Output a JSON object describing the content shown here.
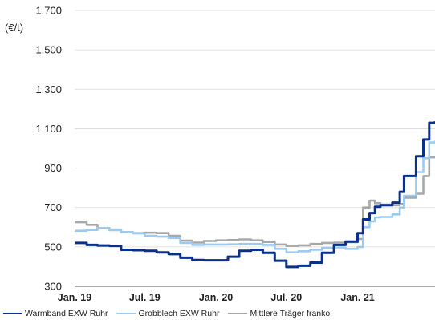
{
  "chart_data": {
    "type": "line",
    "ylabel": "(€/t)",
    "ylim": [
      300,
      1700
    ],
    "yticks": [
      300,
      500,
      700,
      900,
      1100,
      1300,
      1500,
      1700
    ],
    "ytick_labels": [
      "300",
      "500",
      "700",
      "900",
      "1.100",
      "1.300",
      "1.500",
      "1.700"
    ],
    "xlim": [
      "2019-01-01",
      "2021-07-20"
    ],
    "xticks": [
      "2019-01-01",
      "2019-07-01",
      "2020-01-01",
      "2020-07-01",
      "2021-01-01"
    ],
    "xtick_labels": [
      "Jan. 19",
      "Jul. 19",
      "Jan. 20",
      "Jul. 20",
      "Jan. 21"
    ],
    "grid": "horizontal",
    "legend_position": "bottom",
    "series": [
      {
        "name": "Warmband EXW Ruhr",
        "color": "#0a2f8c",
        "points": [
          [
            "2019-01-01",
            520
          ],
          [
            "2019-02-01",
            510
          ],
          [
            "2019-03-01",
            507
          ],
          [
            "2019-04-01",
            505
          ],
          [
            "2019-05-01",
            485
          ],
          [
            "2019-06-01",
            483
          ],
          [
            "2019-07-01",
            480
          ],
          [
            "2019-08-01",
            472
          ],
          [
            "2019-09-01",
            463
          ],
          [
            "2019-10-01",
            445
          ],
          [
            "2019-11-01",
            433
          ],
          [
            "2019-12-01",
            432
          ],
          [
            "2020-01-01",
            432
          ],
          [
            "2020-02-01",
            450
          ],
          [
            "2020-03-01",
            480
          ],
          [
            "2020-04-01",
            485
          ],
          [
            "2020-05-01",
            470
          ],
          [
            "2020-06-01",
            430
          ],
          [
            "2020-07-01",
            398
          ],
          [
            "2020-08-01",
            404
          ],
          [
            "2020-09-01",
            420
          ],
          [
            "2020-10-01",
            470
          ],
          [
            "2020-11-01",
            510
          ],
          [
            "2020-12-01",
            527
          ],
          [
            "2021-01-01",
            570
          ],
          [
            "2021-01-15",
            640
          ],
          [
            "2021-02-01",
            672
          ],
          [
            "2021-02-15",
            704
          ],
          [
            "2021-03-01",
            712
          ],
          [
            "2021-04-01",
            725
          ],
          [
            "2021-04-20",
            780
          ],
          [
            "2021-05-01",
            860
          ],
          [
            "2021-06-01",
            960
          ],
          [
            "2021-06-20",
            1045
          ],
          [
            "2021-07-05",
            1130
          ],
          [
            "2021-07-20",
            1138
          ]
        ]
      },
      {
        "name": "Grobblech EXW Ruhr",
        "color": "#9ccbf2",
        "points": [
          [
            "2019-01-01",
            582
          ],
          [
            "2019-02-01",
            586
          ],
          [
            "2019-03-01",
            596
          ],
          [
            "2019-04-01",
            585
          ],
          [
            "2019-05-01",
            575
          ],
          [
            "2019-06-01",
            568
          ],
          [
            "2019-07-01",
            556
          ],
          [
            "2019-08-01",
            552
          ],
          [
            "2019-09-01",
            545
          ],
          [
            "2019-10-01",
            520
          ],
          [
            "2019-11-01",
            510
          ],
          [
            "2019-12-01",
            512
          ],
          [
            "2020-01-01",
            512
          ],
          [
            "2020-02-01",
            513
          ],
          [
            "2020-03-01",
            515
          ],
          [
            "2020-04-01",
            515
          ],
          [
            "2020-05-01",
            510
          ],
          [
            "2020-06-01",
            490
          ],
          [
            "2020-07-01",
            472
          ],
          [
            "2020-08-01",
            478
          ],
          [
            "2020-09-01",
            485
          ],
          [
            "2020-10-01",
            495
          ],
          [
            "2020-11-01",
            497
          ],
          [
            "2020-12-01",
            490
          ],
          [
            "2021-01-01",
            500
          ],
          [
            "2021-01-15",
            600
          ],
          [
            "2021-02-01",
            630
          ],
          [
            "2021-02-15",
            650
          ],
          [
            "2021-03-01",
            652
          ],
          [
            "2021-04-01",
            665
          ],
          [
            "2021-04-20",
            700
          ],
          [
            "2021-05-01",
            760
          ],
          [
            "2021-06-01",
            880
          ],
          [
            "2021-06-20",
            950
          ],
          [
            "2021-07-05",
            1030
          ],
          [
            "2021-07-20",
            1040
          ]
        ]
      },
      {
        "name": "Mittlere Träger franko",
        "color": "#a8a8a8",
        "points": [
          [
            "2019-01-01",
            625
          ],
          [
            "2019-02-01",
            612
          ],
          [
            "2019-03-01",
            595
          ],
          [
            "2019-04-01",
            588
          ],
          [
            "2019-05-01",
            575
          ],
          [
            "2019-06-01",
            570
          ],
          [
            "2019-07-01",
            572
          ],
          [
            "2019-08-01",
            570
          ],
          [
            "2019-09-01",
            556
          ],
          [
            "2019-10-01",
            532
          ],
          [
            "2019-11-01",
            522
          ],
          [
            "2019-12-01",
            530
          ],
          [
            "2020-01-01",
            533
          ],
          [
            "2020-02-01",
            535
          ],
          [
            "2020-03-01",
            538
          ],
          [
            "2020-04-01",
            533
          ],
          [
            "2020-05-01",
            525
          ],
          [
            "2020-06-01",
            512
          ],
          [
            "2020-07-01",
            505
          ],
          [
            "2020-08-01",
            508
          ],
          [
            "2020-09-01",
            515
          ],
          [
            "2020-10-01",
            520
          ],
          [
            "2020-11-01",
            522
          ],
          [
            "2020-12-01",
            524
          ],
          [
            "2021-01-01",
            540
          ],
          [
            "2021-01-15",
            700
          ],
          [
            "2021-02-01",
            735
          ],
          [
            "2021-02-15",
            722
          ],
          [
            "2021-03-01",
            715
          ],
          [
            "2021-04-01",
            712
          ],
          [
            "2021-04-20",
            718
          ],
          [
            "2021-05-01",
            750
          ],
          [
            "2021-06-01",
            770
          ],
          [
            "2021-06-20",
            860
          ],
          [
            "2021-07-05",
            955
          ],
          [
            "2021-07-20",
            960
          ]
        ]
      }
    ]
  }
}
